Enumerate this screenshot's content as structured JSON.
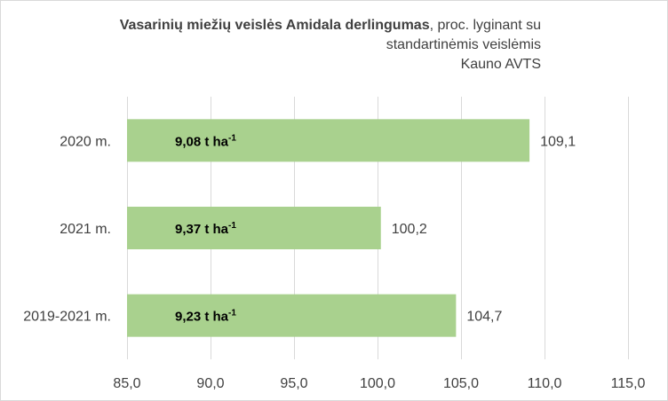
{
  "chart_data": {
    "type": "bar",
    "orientation": "horizontal",
    "title": {
      "bold": "Vasarinių miežių veislės Amidala derlingumas",
      "rest": ", proc. lyginant su",
      "line2": "standartinėmis veislėmis",
      "line3": "Kauno AVTS"
    },
    "categories": [
      "2020 m.",
      "2021 m.",
      "2019-2021 m."
    ],
    "values": [
      109.1,
      100.2,
      104.7
    ],
    "value_labels": [
      "109,1",
      "100,2",
      "104,7"
    ],
    "annotations": [
      {
        "text": "9,08 t ha",
        "sup": "-1"
      },
      {
        "text": "9,37 t ha",
        "sup": "-1"
      },
      {
        "text": "9,23 t ha",
        "sup": "-1"
      }
    ],
    "x_ticks": [
      85,
      90,
      95,
      100,
      105,
      110,
      115
    ],
    "x_tick_labels": [
      "85,0",
      "90,0",
      "95,0",
      "100,0",
      "105,0",
      "110,0",
      "115,0"
    ],
    "xlim": [
      85,
      115
    ],
    "xlabel": "",
    "ylabel": "",
    "grid": true,
    "legend": "none",
    "colors": {
      "bar": "#a9d18e",
      "grid": "#d9d9d9",
      "text": "#404040",
      "annotation": "#000000"
    }
  }
}
